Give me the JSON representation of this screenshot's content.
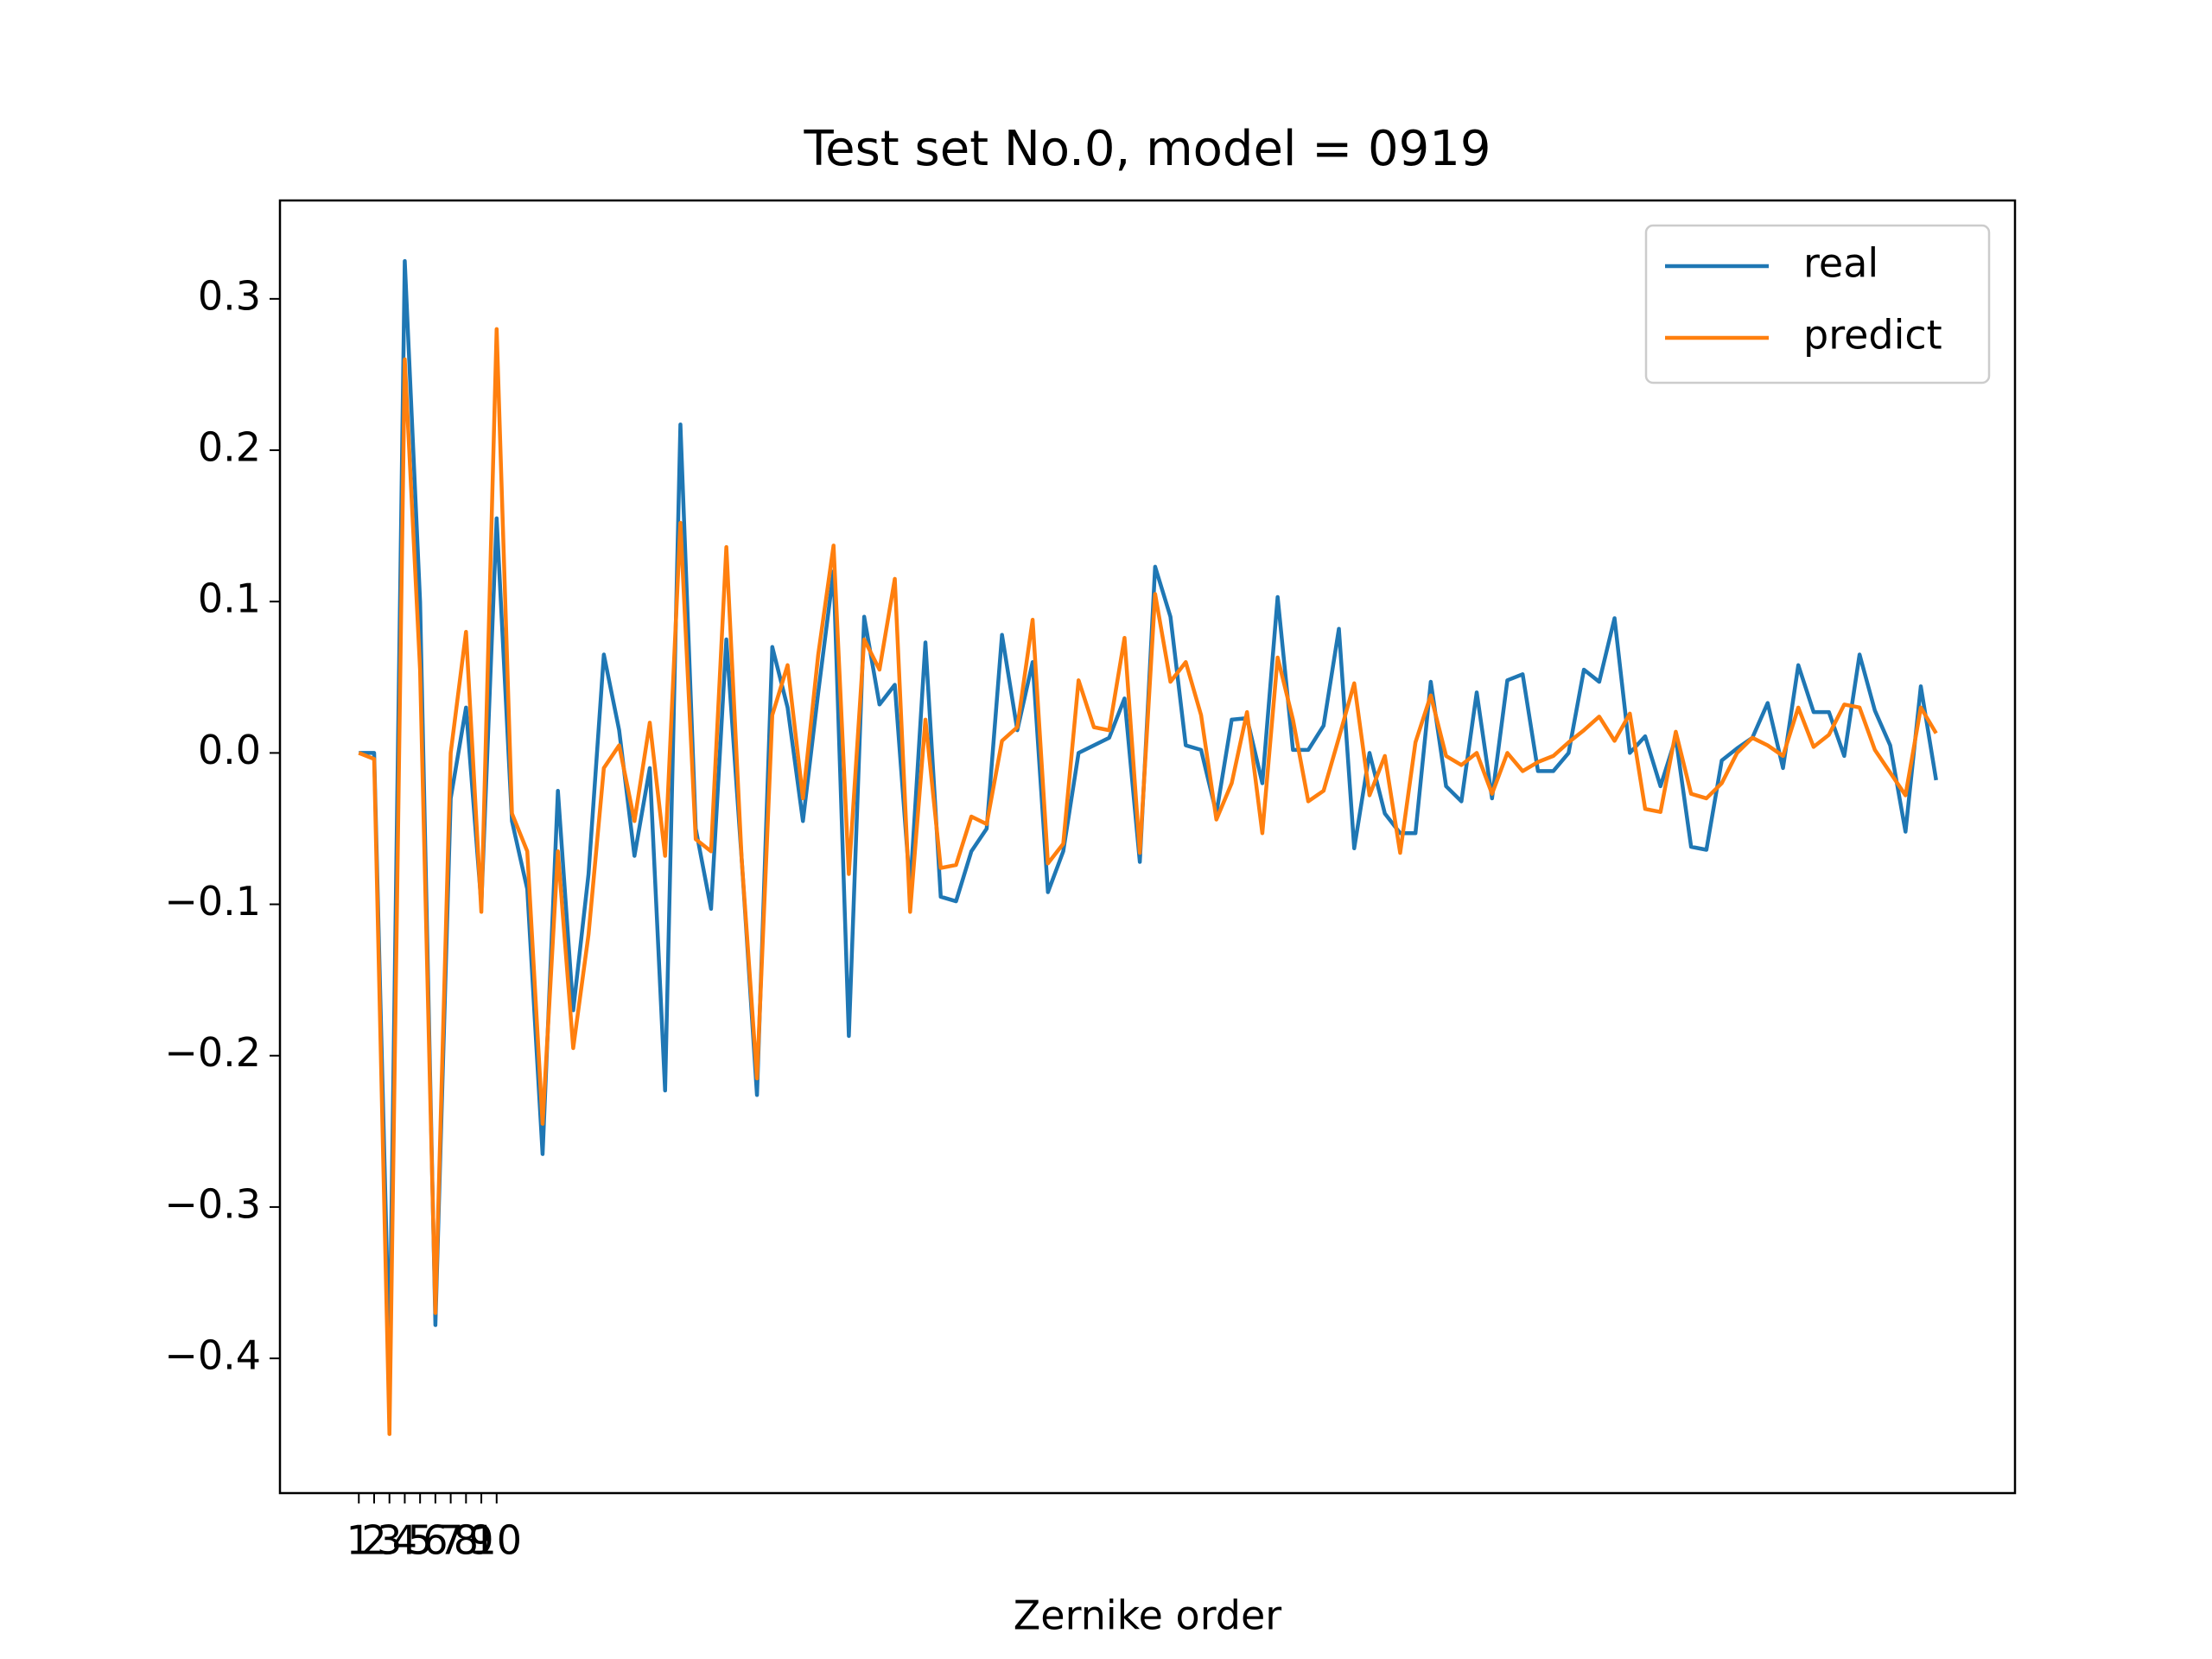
{
  "chart_data": {
    "type": "line",
    "title": "Test set No.0, model = 0919",
    "xlabel": "Zernike order",
    "x": [
      1,
      2,
      3,
      4,
      5,
      6,
      7,
      8,
      9,
      10,
      11,
      12,
      13,
      14,
      15,
      16,
      17,
      18,
      19,
      20,
      21,
      22,
      23,
      24,
      25,
      26,
      27,
      28,
      29,
      30,
      31,
      32,
      33,
      34,
      35,
      36,
      37,
      38,
      39,
      40,
      41,
      42,
      43,
      44,
      45,
      46,
      47,
      48,
      49,
      50,
      51,
      52,
      53,
      54,
      55,
      56,
      57,
      58,
      59,
      60,
      61,
      62,
      63,
      64,
      65,
      66,
      67,
      68,
      69,
      70,
      71,
      72,
      73,
      74,
      75,
      76,
      77,
      78,
      79,
      80,
      81,
      82,
      83,
      84,
      85,
      86,
      87,
      88,
      89,
      90,
      91,
      92,
      93,
      94,
      95,
      96,
      97,
      98,
      99,
      100,
      101,
      102,
      103,
      104
    ],
    "series": [
      {
        "name": "real",
        "color": "#1f77b4",
        "values": [
          0.0,
          0.0,
          -0.4,
          0.325,
          0.1,
          -0.378,
          -0.03,
          0.03,
          -0.1,
          0.155,
          -0.045,
          -0.09,
          -0.265,
          -0.025,
          -0.17,
          -0.08,
          0.065,
          0.015,
          -0.068,
          -0.01,
          -0.223,
          0.217,
          -0.05,
          -0.103,
          0.075,
          -0.07,
          -0.226,
          0.07,
          0.03,
          -0.045,
          0.04,
          0.12,
          -0.187,
          0.09,
          0.032,
          0.045,
          -0.09,
          0.073,
          -0.095,
          -0.098,
          -0.065,
          -0.05,
          0.078,
          0.015,
          0.06,
          -0.092,
          -0.065,
          0.0,
          0.005,
          0.01,
          0.036,
          -0.072,
          0.123,
          0.09,
          0.005,
          0.002,
          -0.04,
          0.022,
          0.023,
          -0.02,
          0.103,
          0.002,
          0.002,
          0.018,
          0.082,
          -0.063,
          0.0,
          -0.04,
          -0.053,
          -0.053,
          0.047,
          -0.022,
          -0.032,
          0.04,
          -0.03,
          0.048,
          0.052,
          -0.012,
          -0.012,
          0.0,
          0.055,
          0.047,
          0.089,
          0.0,
          0.011,
          -0.022,
          0.01,
          -0.062,
          -0.064,
          -0.005,
          0.003,
          0.01,
          0.033,
          -0.01,
          0.058,
          0.027,
          0.027,
          -0.002,
          0.065,
          0.028,
          0.005,
          -0.052,
          0.044,
          -0.018
        ]
      },
      {
        "name": "predict",
        "color": "#ff7f0e",
        "values": [
          0.0,
          -0.004,
          -0.45,
          0.26,
          0.055,
          -0.37,
          0.0,
          0.08,
          -0.105,
          0.28,
          -0.04,
          -0.065,
          -0.245,
          -0.065,
          -0.195,
          -0.12,
          -0.01,
          0.005,
          -0.045,
          0.02,
          -0.068,
          0.152,
          -0.057,
          -0.065,
          0.136,
          -0.07,
          -0.215,
          0.025,
          0.058,
          -0.03,
          0.065,
          0.137,
          -0.08,
          0.075,
          0.055,
          0.115,
          -0.105,
          0.022,
          -0.076,
          -0.074,
          -0.042,
          -0.047,
          0.008,
          0.017,
          0.088,
          -0.073,
          -0.06,
          0.048,
          0.017,
          0.015,
          0.076,
          -0.066,
          0.105,
          0.047,
          0.06,
          0.025,
          -0.044,
          -0.02,
          0.027,
          -0.053,
          0.063,
          0.022,
          -0.032,
          -0.025,
          0.01,
          0.046,
          -0.028,
          -0.002,
          -0.066,
          0.007,
          0.038,
          -0.002,
          -0.008,
          0.0,
          -0.027,
          0.0,
          -0.012,
          -0.006,
          -0.002,
          0.007,
          0.015,
          0.024,
          0.008,
          0.026,
          -0.037,
          -0.039,
          0.014,
          -0.027,
          -0.03,
          -0.02,
          0.0,
          0.01,
          0.005,
          -0.002,
          0.03,
          0.004,
          0.012,
          0.032,
          0.03,
          0.002,
          -0.013,
          -0.028,
          0.03,
          0.013
        ]
      }
    ],
    "xlim": [
      -4.15,
      109.15
    ],
    "xticks": [
      1,
      2,
      3,
      4,
      5,
      6,
      7,
      8,
      9,
      10
    ],
    "ylim": [
      -0.489,
      0.365
    ],
    "yticks": [
      {
        "value": -0.4,
        "label": "−0.4"
      },
      {
        "value": -0.3,
        "label": "−0.3"
      },
      {
        "value": -0.2,
        "label": "−0.2"
      },
      {
        "value": -0.1,
        "label": "−0.1"
      },
      {
        "value": 0,
        "label": "0.0"
      },
      {
        "value": 0.1,
        "label": "0.1"
      },
      {
        "value": 0.2,
        "label": "0.2"
      },
      {
        "value": 0.3,
        "label": "0.3"
      }
    ],
    "legend": "upper right"
  }
}
